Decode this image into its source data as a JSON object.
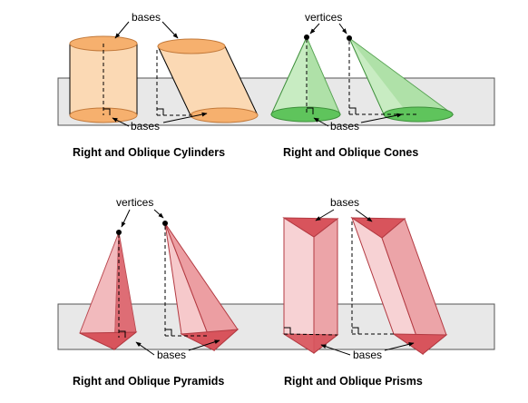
{
  "panels": {
    "cylinders": {
      "caption": "Right and Oblique Cylinders",
      "top_label": "bases",
      "bottom_label": "bases",
      "colors": {
        "side": "#fbd9b4",
        "base": "#f6b06e",
        "edge": "#c37a3b"
      }
    },
    "cones": {
      "caption": "Right and Oblique Cones",
      "top_label": "vertices",
      "bottom_label": "bases",
      "colors": {
        "side": "#c8ecc2",
        "shade": "#9fda96",
        "base": "#5fc45c",
        "edge": "#3d8f3a"
      }
    },
    "pyramids": {
      "caption": "Right and Oblique Pyramids",
      "top_label": "vertices",
      "bottom_label": "bases",
      "colors": {
        "light": "#f6c9cb",
        "mid": "#ec9ea2",
        "dark": "#d8545c",
        "edge": "#b33a42"
      }
    },
    "prisms": {
      "caption": "Right and Oblique Prisms",
      "top_label": "bases",
      "bottom_label": "bases",
      "colors": {
        "light": "#f7d2d4",
        "mid": "#eca4a8",
        "dark": "#d8545c",
        "edge": "#b33a42"
      }
    }
  },
  "plane_color": "#e8e8e8"
}
